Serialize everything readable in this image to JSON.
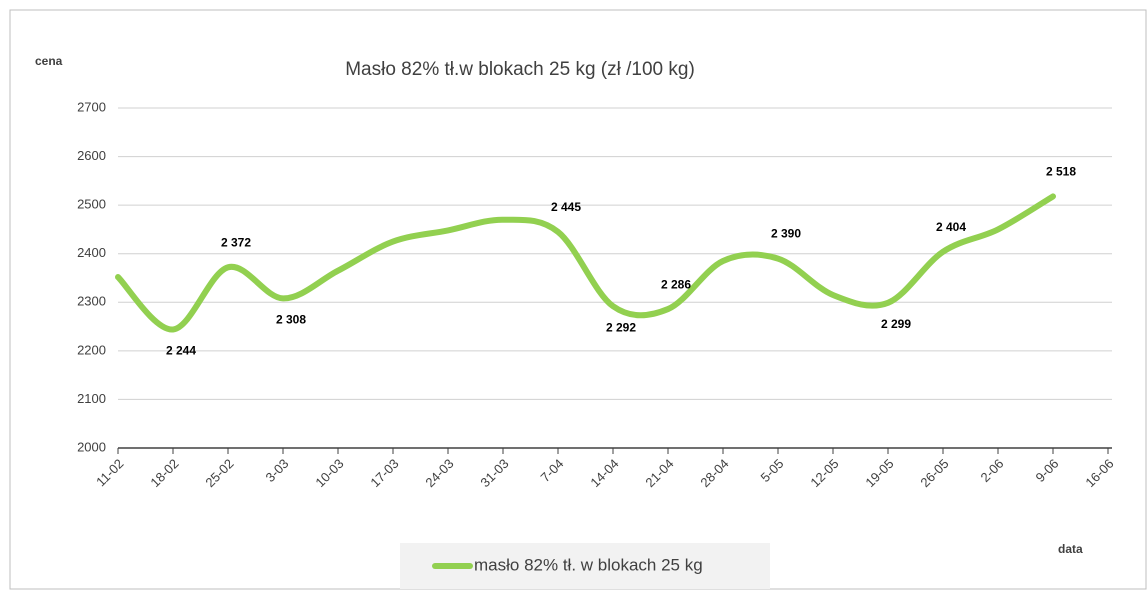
{
  "chart_data": {
    "type": "line",
    "title": "Masło 82% tł.w blokach 25 kg (zł /100 kg)",
    "y_label": "cena",
    "x_label": "data",
    "categories": [
      "11-02",
      "18-02",
      "25-02",
      "3-03",
      "10-03",
      "17-03",
      "24-03",
      "31-03",
      "7-04",
      "14-04",
      "21-04",
      "28-04",
      "5-05",
      "12-05",
      "19-05",
      "26-05",
      "2-06",
      "9-06",
      "16-06"
    ],
    "series": [
      {
        "name": "masło 82% tł. w blokach 25 kg",
        "color": "#92d050",
        "values": [
          2352,
          2244,
          2372,
          2308,
          2365,
          2425,
          2448,
          2470,
          2445,
          2292,
          2286,
          2385,
          2390,
          2315,
          2299,
          2404,
          2450,
          2518,
          null
        ],
        "value_labels": [
          null,
          "2 244",
          "2 372",
          "2 308",
          null,
          null,
          null,
          null,
          "2 445",
          "2 292",
          "2 286",
          null,
          "2 390",
          null,
          "2 299",
          "2 404",
          null,
          "2 518",
          null
        ]
      }
    ],
    "ylim": [
      2000,
      2700
    ],
    "yticks": [
      2000,
      2100,
      2200,
      2300,
      2400,
      2500,
      2600,
      2700
    ],
    "grid": true,
    "legend": "bottom"
  }
}
